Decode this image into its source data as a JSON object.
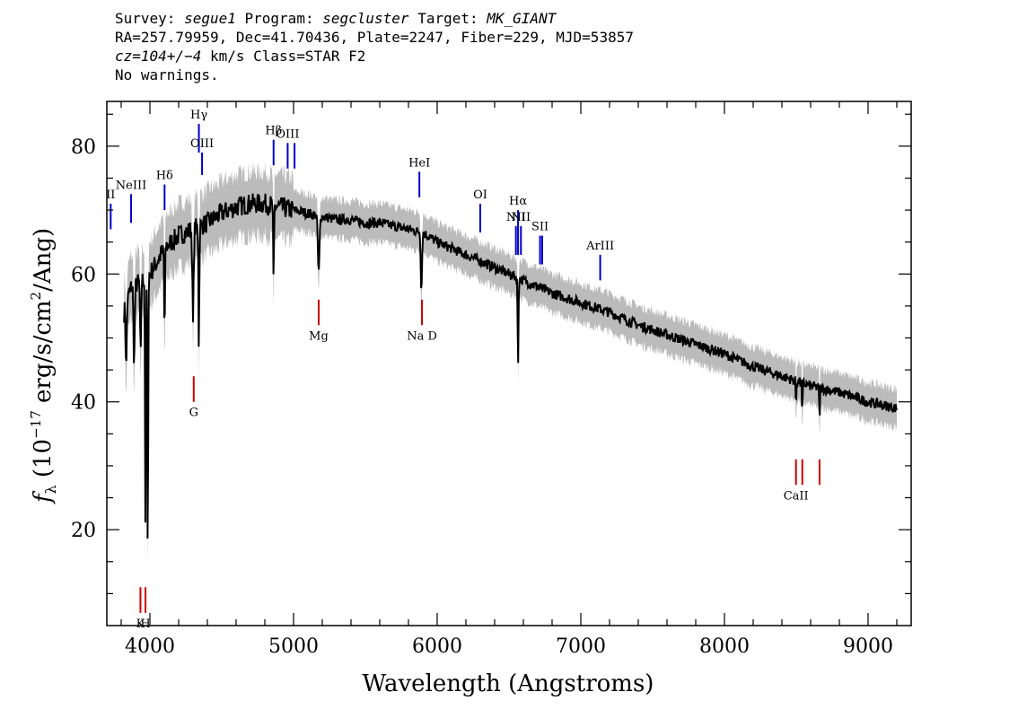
{
  "header": {
    "line1": {
      "survey_label": "Survey:",
      "survey": "segue1",
      "program_label": "Program:",
      "program": "segcluster",
      "target_label": "Target:",
      "target": "MK_GIANT"
    },
    "line2": "RA=257.79959, Dec=41.70436, Plate=2247, Fiber=229, MJD=53857",
    "line3": {
      "cz": "cz=104+/−4",
      "rest": " km/s Class=STAR F2"
    },
    "line4": "No warnings."
  },
  "chart_data": {
    "type": "line",
    "xlabel": "Wavelength (Angstroms)",
    "ylabel": "fλ (10⁻¹⁷ erg/s/cm²/Ang)",
    "xlim": [
      3700,
      9300
    ],
    "ylim": [
      5,
      87
    ],
    "x_ticks": [
      4000,
      5000,
      6000,
      7000,
      8000,
      9000
    ],
    "y_ticks": [
      20,
      40,
      60,
      80
    ],
    "colors": {
      "flux": "#000000",
      "error_band": "#bbbbbb",
      "emission": "#0000cc",
      "absorption": "#cc0000"
    },
    "continuum": [
      [
        3820,
        54
      ],
      [
        3870,
        58
      ],
      [
        3950,
        59
      ],
      [
        4000,
        60
      ],
      [
        4100,
        64
      ],
      [
        4200,
        66
      ],
      [
        4300,
        67
      ],
      [
        4400,
        68
      ],
      [
        4500,
        69.5
      ],
      [
        4600,
        70.5
      ],
      [
        4700,
        71
      ],
      [
        4800,
        71
      ],
      [
        4900,
        70.5
      ],
      [
        5000,
        70
      ],
      [
        5100,
        69.5
      ],
      [
        5200,
        69
      ],
      [
        5300,
        68.5
      ],
      [
        5400,
        68.5
      ],
      [
        5500,
        68
      ],
      [
        5600,
        68
      ],
      [
        5700,
        67.5
      ],
      [
        5800,
        67
      ],
      [
        5900,
        66.5
      ],
      [
        6000,
        65
      ],
      [
        6200,
        63
      ],
      [
        6400,
        61
      ],
      [
        6600,
        59
      ],
      [
        6800,
        57
      ],
      [
        7000,
        55.5
      ],
      [
        7200,
        54
      ],
      [
        7400,
        52
      ],
      [
        7600,
        50.5
      ],
      [
        7800,
        49
      ],
      [
        8000,
        47.5
      ],
      [
        8200,
        45.5
      ],
      [
        8400,
        44
      ],
      [
        8600,
        42.5
      ],
      [
        8800,
        41.5
      ],
      [
        9000,
        40
      ],
      [
        9200,
        39
      ]
    ],
    "absorption_features": [
      [
        3835,
        5,
        10
      ],
      [
        3890,
        6,
        12
      ],
      [
        3935,
        5,
        12
      ],
      [
        3969,
        4,
        40
      ],
      [
        3985,
        4,
        45
      ],
      [
        4102,
        4,
        14
      ],
      [
        4300,
        6,
        15
      ],
      [
        4341,
        4,
        19
      ],
      [
        4861,
        4,
        13
      ],
      [
        5175,
        8,
        9
      ],
      [
        5890,
        6,
        9
      ],
      [
        6563,
        4,
        14
      ],
      [
        8498,
        3,
        4
      ],
      [
        8542,
        3,
        6
      ],
      [
        8662,
        3,
        6
      ]
    ],
    "emission_lines": [
      {
        "label": "NeIII",
        "x": 3869,
        "y0": 68,
        "y1": 72.5
      },
      {
        "label": "Hδ",
        "x": 4102,
        "y0": 70,
        "y1": 74
      },
      {
        "label": "Hγ",
        "x": 4341,
        "y0": 79,
        "y1": 83.5
      },
      {
        "label": "OIII",
        "x": 4363,
        "y0": 75.5,
        "y1": 79
      },
      {
        "label": "Hβ",
        "x": 4861,
        "y0": 77,
        "y1": 81
      },
      {
        "label": "OIII",
        "x": 4959,
        "y0": 76.5,
        "y1": 80.5
      },
      {
        "label": "",
        "x": 5007,
        "y0": 76.5,
        "y1": 80.5
      },
      {
        "label": "HeI",
        "x": 5876,
        "y0": 72,
        "y1": 76
      },
      {
        "label": "OI",
        "x": 6300,
        "y0": 66.5,
        "y1": 71
      },
      {
        "label": "NII",
        "x": 6548,
        "y0": 63,
        "y1": 67.5
      },
      {
        "label": "Hα",
        "x": 6563,
        "y0": 63,
        "y1": 70
      },
      {
        "label": "NII",
        "x": 6583,
        "y0": 63,
        "y1": 67.5
      },
      {
        "label": "SII",
        "x": 6716,
        "y0": 61.5,
        "y1": 66
      },
      {
        "label": "",
        "x": 6731,
        "y0": 61.5,
        "y1": 66
      },
      {
        "label": "ArIII",
        "x": 7135,
        "y0": 59,
        "y1": 63
      },
      {
        "label": "II",
        "x": 3727,
        "y0": 67,
        "y1": 71
      }
    ],
    "absorption_lines": [
      {
        "label": "K",
        "x": 3934,
        "y0": 7,
        "y1": 11
      },
      {
        "label": "H",
        "x": 3969,
        "y0": 7,
        "y1": 11
      },
      {
        "label": "G",
        "x": 4305,
        "y0": 40,
        "y1": 44
      },
      {
        "label": "Mg",
        "x": 5175,
        "y0": 52,
        "y1": 56
      },
      {
        "label": "Na D",
        "x": 5894,
        "y0": 52,
        "y1": 56
      },
      {
        "label": "CaII",
        "x": 8498,
        "y0": 27,
        "y1": 31
      },
      {
        "label": "",
        "x": 8542,
        "y0": 27,
        "y1": 31
      },
      {
        "label": "",
        "x": 8662,
        "y0": 27,
        "y1": 31
      }
    ]
  }
}
